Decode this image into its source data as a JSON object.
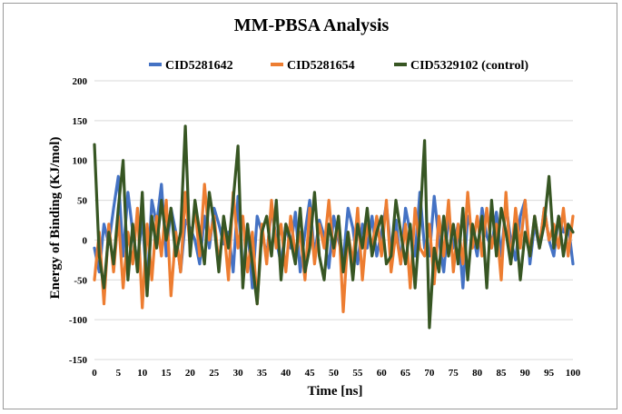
{
  "chart_data": {
    "type": "line",
    "title": "MM-PBSA Analysis",
    "xlabel": "Time [ns]",
    "ylabel": "Energy of Binding (KJ/mol)",
    "xlim": [
      0,
      100
    ],
    "ylim": [
      -150,
      200
    ],
    "xticks": [
      0,
      5,
      10,
      15,
      20,
      25,
      30,
      35,
      40,
      45,
      50,
      55,
      60,
      65,
      70,
      75,
      80,
      85,
      90,
      95,
      100
    ],
    "yticks": [
      -150,
      -100,
      -50,
      0,
      50,
      100,
      150,
      200
    ],
    "legend_position": "top",
    "grid": "horizontal",
    "series": [
      {
        "name": "CID5281642",
        "color": "#4472c4",
        "x": [
          0,
          1,
          2,
          3,
          4,
          5,
          6,
          7,
          8,
          9,
          10,
          11,
          12,
          13,
          14,
          15,
          16,
          17,
          18,
          19,
          20,
          21,
          22,
          23,
          24,
          25,
          26,
          27,
          28,
          29,
          30,
          31,
          32,
          33,
          34,
          35,
          36,
          37,
          38,
          39,
          40,
          41,
          42,
          43,
          44,
          45,
          46,
          47,
          48,
          49,
          50,
          51,
          52,
          53,
          54,
          55,
          56,
          57,
          58,
          59,
          60,
          61,
          62,
          63,
          64,
          65,
          66,
          67,
          68,
          69,
          70,
          71,
          72,
          73,
          74,
          75,
          76,
          77,
          78,
          79,
          80,
          81,
          82,
          83,
          84,
          85,
          86,
          87,
          88,
          89,
          90,
          91,
          92,
          93,
          94,
          95,
          96,
          97,
          98,
          99,
          100
        ],
        "y": [
          -10,
          -40,
          20,
          -5,
          40,
          80,
          -20,
          60,
          10,
          -30,
          30,
          -60,
          50,
          20,
          70,
          -20,
          40,
          10,
          -40,
          25,
          15,
          0,
          -30,
          30,
          -10,
          40,
          20,
          -5,
          10,
          -40,
          55,
          -50,
          20,
          -60,
          30,
          10,
          -20,
          40,
          0,
          -30,
          20,
          -10,
          35,
          -40,
          10,
          50,
          -20,
          25,
          5,
          -35,
          30,
          0,
          -25,
          40,
          15,
          -30,
          20,
          -10,
          30,
          -20,
          10,
          45,
          -15,
          25,
          -30,
          40,
          10,
          -20,
          60,
          -10,
          -20,
          55,
          0,
          -40,
          30,
          -10,
          20,
          -60,
          30,
          10,
          -20,
          40,
          5,
          -10,
          35,
          -20,
          45,
          0,
          -25,
          30,
          50,
          -30,
          20,
          -10,
          40,
          0,
          -20,
          30,
          10,
          20,
          -30
        ]
      },
      {
        "name": "CID5281654",
        "color": "#ed7d31",
        "x": [
          0,
          1,
          2,
          3,
          4,
          5,
          6,
          7,
          8,
          9,
          10,
          11,
          12,
          13,
          14,
          15,
          16,
          17,
          18,
          19,
          20,
          21,
          22,
          23,
          24,
          25,
          26,
          27,
          28,
          29,
          30,
          31,
          32,
          33,
          34,
          35,
          36,
          37,
          38,
          39,
          40,
          41,
          42,
          43,
          44,
          45,
          46,
          47,
          48,
          49,
          50,
          51,
          52,
          53,
          54,
          55,
          56,
          57,
          58,
          59,
          60,
          61,
          62,
          63,
          64,
          65,
          66,
          67,
          68,
          69,
          70,
          71,
          72,
          73,
          74,
          75,
          76,
          77,
          78,
          79,
          80,
          81,
          82,
          83,
          84,
          85,
          86,
          87,
          88,
          89,
          90,
          91,
          92,
          93,
          94,
          95,
          96,
          97,
          98,
          99,
          100
        ],
        "y": [
          -50,
          10,
          -80,
          20,
          -40,
          30,
          -60,
          10,
          -30,
          40,
          -85,
          20,
          -50,
          30,
          -20,
          50,
          -70,
          10,
          -40,
          60,
          -10,
          40,
          -20,
          70,
          0,
          30,
          -30,
          20,
          -50,
          60,
          -10,
          30,
          -40,
          10,
          -80,
          20,
          -30,
          50,
          -10,
          20,
          -40,
          30,
          -20,
          10,
          -50,
          40,
          -30,
          20,
          -10,
          50,
          -20,
          30,
          -90,
          10,
          -30,
          40,
          -50,
          20,
          -10,
          30,
          -20,
          50,
          -40,
          10,
          -30,
          20,
          -60,
          40,
          -10,
          -20,
          20,
          -55,
          30,
          -20,
          50,
          -40,
          20,
          -30,
          60,
          -10,
          30,
          -20,
          40,
          -10,
          20,
          -50,
          60,
          -30,
          40,
          -10,
          50,
          -20,
          30,
          -10,
          40,
          0,
          20,
          -10,
          40,
          -20,
          30
        ]
      },
      {
        "name": "CID5329102 (control)",
        "color": "#375623",
        "x": [
          0,
          1,
          2,
          3,
          4,
          5,
          6,
          7,
          8,
          9,
          10,
          11,
          12,
          13,
          14,
          15,
          16,
          17,
          18,
          19,
          20,
          21,
          22,
          23,
          24,
          25,
          26,
          27,
          28,
          29,
          30,
          31,
          32,
          33,
          34,
          35,
          36,
          37,
          38,
          39,
          40,
          41,
          42,
          43,
          44,
          45,
          46,
          47,
          48,
          49,
          50,
          51,
          52,
          53,
          54,
          55,
          56,
          57,
          58,
          59,
          60,
          61,
          62,
          63,
          64,
          65,
          66,
          67,
          68,
          69,
          70,
          71,
          72,
          73,
          74,
          75,
          76,
          77,
          78,
          79,
          80,
          81,
          82,
          83,
          84,
          85,
          86,
          87,
          88,
          89,
          90,
          91,
          92,
          93,
          94,
          95,
          96,
          97,
          98,
          99,
          100
        ],
        "y": [
          120,
          -20,
          -60,
          10,
          -30,
          40,
          100,
          -50,
          20,
          -40,
          60,
          -70,
          30,
          -10,
          50,
          0,
          40,
          -20,
          10,
          143,
          -20,
          50,
          10,
          -30,
          60,
          20,
          -40,
          30,
          -10,
          50,
          118,
          -60,
          20,
          -30,
          -80,
          10,
          30,
          -20,
          50,
          -50,
          20,
          0,
          -30,
          40,
          -40,
          -10,
          60,
          -20,
          -50,
          20,
          -10,
          30,
          -40,
          10,
          -50,
          20,
          -10,
          40,
          -20,
          10,
          30,
          -30,
          -20,
          50,
          10,
          -30,
          20,
          -60,
          20,
          125,
          -110,
          -10,
          -40,
          30,
          -20,
          20,
          -30,
          40,
          -50,
          20,
          -10,
          30,
          -60,
          50,
          -20,
          40,
          10,
          -30,
          20,
          -50,
          10,
          -20,
          30,
          -10,
          20,
          80,
          -10,
          30,
          -20,
          20,
          10
        ]
      }
    ]
  }
}
